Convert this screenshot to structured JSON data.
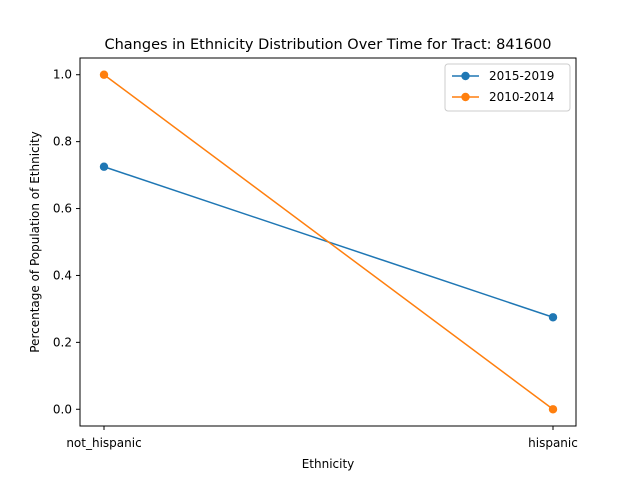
{
  "chart_data": {
    "type": "line",
    "title": "Changes in Ethnicity Distribution Over Time for Tract: 841600",
    "xlabel": "Ethnicity",
    "ylabel": "Percentage of Population of Ethnicity",
    "categories": [
      "not_hispanic",
      "hispanic"
    ],
    "ylim": [
      -0.05,
      1.05
    ],
    "yticks": [
      "0.0",
      "0.2",
      "0.4",
      "0.6",
      "0.8",
      "1.0"
    ],
    "grid": false,
    "legend_position": "top-right",
    "series": [
      {
        "name": "2015-2019",
        "color": "#1f77b4",
        "values": [
          0.725,
          0.275
        ]
      },
      {
        "name": "2010-2014",
        "color": "#ff7f0e",
        "values": [
          1.0,
          0.0
        ]
      }
    ]
  }
}
